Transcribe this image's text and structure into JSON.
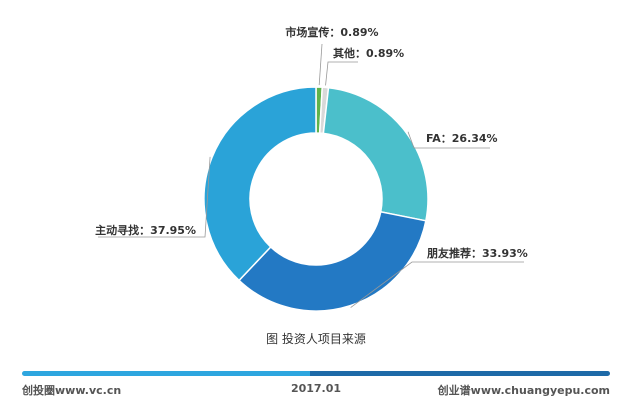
{
  "chart_data": {
    "type": "pie",
    "title": "",
    "categories": [
      "市场宣传",
      "其他",
      "FA",
      "朋友推荐",
      "主动寻找"
    ],
    "values": [
      0.89,
      0.89,
      26.34,
      33.93,
      37.95
    ],
    "labels": [
      "市场宣传：0.89%",
      "其他：0.89%",
      "FA：26.34%",
      "朋友推荐：33.93%",
      "主动寻找：37.95%"
    ],
    "colors": [
      "#5fb34c",
      "#d9d9d9",
      "#4bbfcb",
      "#2379c4",
      "#2aa3d8"
    ],
    "donut": true,
    "legend": "none"
  },
  "caption": "图 投资人项目来源",
  "footer": {
    "left": "创投圈www.vc.cn",
    "center": "2017.01",
    "right": "创业谱www.chuangyepu.com",
    "bar_colors": [
      "#2ea6df",
      "#1e6aa8"
    ]
  }
}
